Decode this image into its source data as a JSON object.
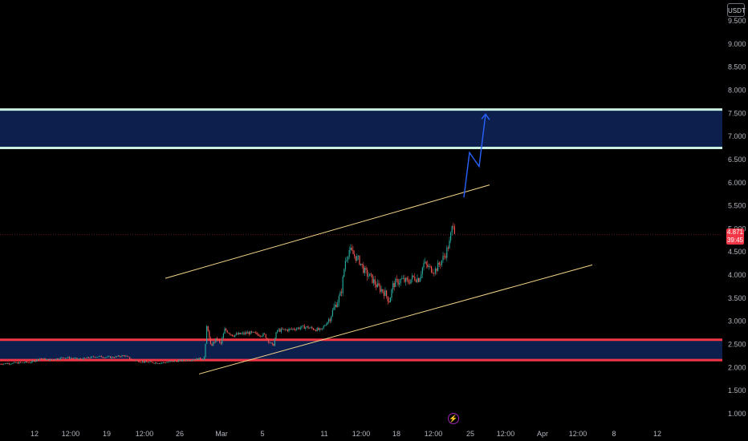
{
  "chart_data": {
    "type": "candlestick",
    "quote_currency": "USDT",
    "y_axis": {
      "ticks": [
        "9.500",
        "9.000",
        "8.500",
        "8.000",
        "7.500",
        "7.000",
        "6.500",
        "6.000",
        "5.500",
        "5.000",
        "4.500",
        "4.000",
        "3.500",
        "3.000",
        "2.500",
        "2.000",
        "1.500",
        "1.000"
      ],
      "range": [
        0.85,
        9.75
      ]
    },
    "x_axis": {
      "ticks": [
        "12",
        "12:00",
        "19",
        "12:00",
        "26",
        "Mar",
        "5",
        "11",
        "12:00",
        "18",
        "12:00",
        "25",
        "12:00",
        "Apr",
        "12:00",
        "8",
        "12"
      ]
    },
    "last_price": {
      "value": "4.871",
      "countdown": "39:45",
      "line_value": 4.871
    },
    "resistance_zone": {
      "low": 6.75,
      "high": 7.58,
      "fill": "#0d1f4c",
      "border": "#c8f0e0"
    },
    "support_zone": {
      "low": 2.16,
      "high": 2.6,
      "fill": "#0d1f4c",
      "border": "#f23645"
    },
    "upper_channel_line": [
      [
        206,
        3.93
      ],
      [
        610,
        5.95
      ]
    ],
    "lower_channel_line": [
      [
        248,
        1.86
      ],
      [
        738,
        4.22
      ]
    ],
    "projection_path": [
      [
        578,
        5.68
      ],
      [
        585,
        6.65
      ],
      [
        597,
        6.35
      ],
      [
        605,
        7.48
      ]
    ],
    "price_path": [
      [
        0,
        2.08
      ],
      [
        20,
        2.1
      ],
      [
        40,
        2.12
      ],
      [
        50,
        2.2
      ],
      [
        60,
        2.16
      ],
      [
        80,
        2.22
      ],
      [
        100,
        2.18
      ],
      [
        120,
        2.24
      ],
      [
        140,
        2.22
      ],
      [
        155,
        2.26
      ],
      [
        165,
        2.16
      ],
      [
        180,
        2.12
      ],
      [
        200,
        2.1
      ],
      [
        220,
        2.14
      ],
      [
        245,
        2.18
      ],
      [
        255,
        2.22
      ],
      [
        258,
        2.98
      ],
      [
        262,
        2.46
      ],
      [
        270,
        2.62
      ],
      [
        275,
        2.5
      ],
      [
        280,
        2.82
      ],
      [
        290,
        2.7
      ],
      [
        310,
        2.75
      ],
      [
        330,
        2.7
      ],
      [
        340,
        2.45
      ],
      [
        345,
        2.8
      ],
      [
        360,
        2.82
      ],
      [
        380,
        2.88
      ],
      [
        400,
        2.8
      ],
      [
        410,
        3.05
      ],
      [
        418,
        3.35
      ],
      [
        425,
        3.6
      ],
      [
        430,
        4.3
      ],
      [
        435,
        4.55
      ],
      [
        440,
        4.45
      ],
      [
        448,
        4.3
      ],
      [
        455,
        4.05
      ],
      [
        462,
        3.95
      ],
      [
        470,
        3.75
      ],
      [
        478,
        3.65
      ],
      [
        485,
        3.45
      ],
      [
        490,
        3.8
      ],
      [
        500,
        3.9
      ],
      [
        508,
        3.85
      ],
      [
        515,
        3.95
      ],
      [
        522,
        3.92
      ],
      [
        528,
        4.25
      ],
      [
        535,
        4.15
      ],
      [
        542,
        4.1
      ],
      [
        548,
        4.25
      ],
      [
        555,
        4.45
      ],
      [
        560,
        4.7
      ],
      [
        563,
        5.0
      ],
      [
        565,
        5.15
      ],
      [
        567,
        4.9
      ],
      [
        568,
        4.87
      ]
    ],
    "colors": {
      "up": "#26a69a",
      "down": "#ef5350",
      "channel": "#f5d58a",
      "projection": "#2962ff",
      "axis_text": "#b2b5be"
    }
  }
}
